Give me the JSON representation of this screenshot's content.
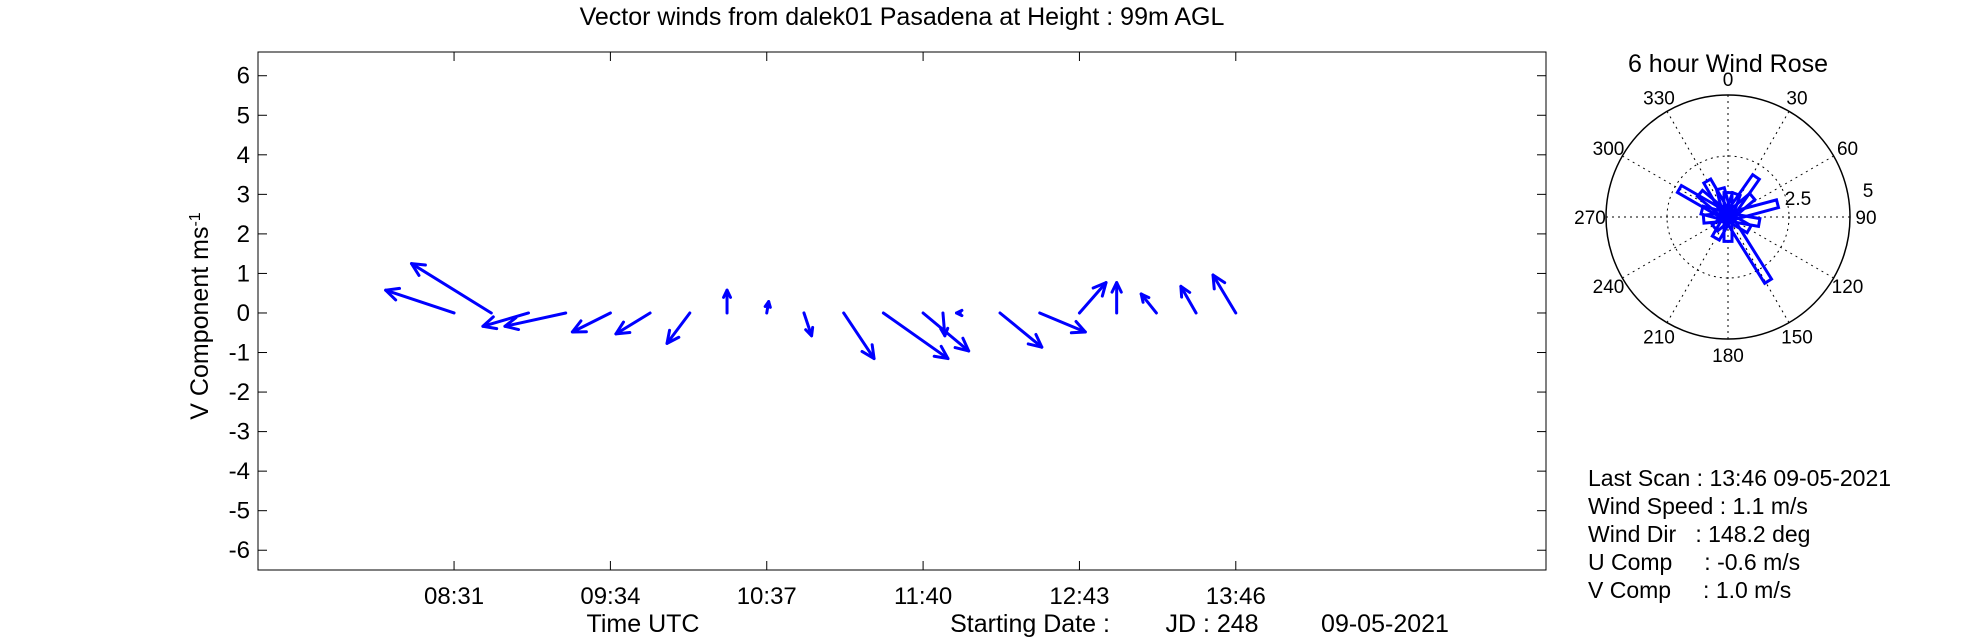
{
  "chart_data": [
    {
      "type": "vector",
      "title": "Vector winds from dalek01 Pasadena at Height : 99m  AGL",
      "ylabel": "V Component  ms",
      "ylabel_sup": "-1",
      "xlabel": "Time UTC",
      "ylim": [
        -6.5,
        6.6
      ],
      "xlim": [
        "07:12",
        "15:51"
      ],
      "yticks": [
        6,
        5,
        4,
        3,
        2,
        1,
        0,
        -1,
        -2,
        -3,
        -4,
        -5,
        -6
      ],
      "xticks": [
        "08:31",
        "09:34",
        "10:37",
        "11:40",
        "12:43",
        "13:46"
      ],
      "series_color": "#0000ff",
      "vectors": [
        {
          "time": "08:31",
          "u": -1.8,
          "v": 0.6
        },
        {
          "time": "08:46",
          "u": -2.1,
          "v": 1.3
        },
        {
          "time": "09:01",
          "u": -1.2,
          "v": -0.35
        },
        {
          "time": "09:16",
          "u": -1.6,
          "v": -0.35
        },
        {
          "time": "09:34",
          "u": -1.0,
          "v": -0.5
        },
        {
          "time": "09:50",
          "u": -0.9,
          "v": -0.55
        },
        {
          "time": "10:06",
          "u": -0.6,
          "v": -0.8
        },
        {
          "time": "10:21",
          "u": 0.0,
          "v": 0.6
        },
        {
          "time": "10:37",
          "u": 0.05,
          "v": 0.3
        },
        {
          "time": "10:52",
          "u": 0.2,
          "v": -0.6
        },
        {
          "time": "11:08",
          "u": 0.8,
          "v": -1.2
        },
        {
          "time": "11:24",
          "u": 1.7,
          "v": -1.2
        },
        {
          "time": "11:40",
          "u": 1.2,
          "v": -1.0
        },
        {
          "time": "11:48",
          "u": 0.05,
          "v": -0.6
        },
        {
          "time": "11:55",
          "u": -0.1,
          "v": 0.0
        },
        {
          "time": "12:11",
          "u": 1.1,
          "v": -0.9
        },
        {
          "time": "12:27",
          "u": 1.2,
          "v": -0.5
        },
        {
          "time": "12:43",
          "u": 0.7,
          "v": 0.8
        },
        {
          "time": "12:58",
          "u": 0.0,
          "v": 0.8
        },
        {
          "time": "13:14",
          "u": -0.4,
          "v": 0.5
        },
        {
          "time": "13:30",
          "u": -0.4,
          "v": 0.7
        },
        {
          "time": "13:46",
          "u": -0.6,
          "v": 1.0
        }
      ]
    },
    {
      "type": "polar",
      "title": "6 hour Wind Rose",
      "angle_labels": [
        "0",
        "30",
        "60",
        "90",
        "120",
        "150",
        "180",
        "210",
        "240",
        "270",
        "300",
        "330"
      ],
      "radius_labels": [
        "2.5",
        "5"
      ],
      "rmax": 5,
      "petals": [
        {
          "dir": 300,
          "speed": 2.3
        },
        {
          "dir": 310,
          "speed": 1.5
        },
        {
          "dir": 330,
          "speed": 1.7
        },
        {
          "dir": 345,
          "speed": 1.2
        },
        {
          "dir": 0,
          "speed": 1.0
        },
        {
          "dir": 20,
          "speed": 1.0
        },
        {
          "dir": 35,
          "speed": 2.0
        },
        {
          "dir": 50,
          "speed": 1.3
        },
        {
          "dir": 75,
          "speed": 2.1
        },
        {
          "dir": 100,
          "speed": 1.3
        },
        {
          "dir": 120,
          "speed": 1.0
        },
        {
          "dir": 148,
          "speed": 3.1
        },
        {
          "dir": 180,
          "speed": 1.0
        },
        {
          "dir": 210,
          "speed": 1.0
        },
        {
          "dir": 230,
          "speed": 0.7
        },
        {
          "dir": 265,
          "speed": 1.0
        },
        {
          "dir": 285,
          "speed": 1.1
        }
      ]
    }
  ],
  "footer": {
    "starting_date_label": "Starting Date :",
    "jd_label": "JD : 248",
    "date": "09-05-2021"
  },
  "summary": {
    "last_scan": "Last Scan : 13:46 09-05-2021",
    "wind_speed": "Wind Speed : 1.1 m/s",
    "wind_dir": "Wind Dir   : 148.2 deg",
    "u_comp": "U Comp     : -0.6 m/s",
    "v_comp": "V Comp     : 1.0 m/s"
  }
}
